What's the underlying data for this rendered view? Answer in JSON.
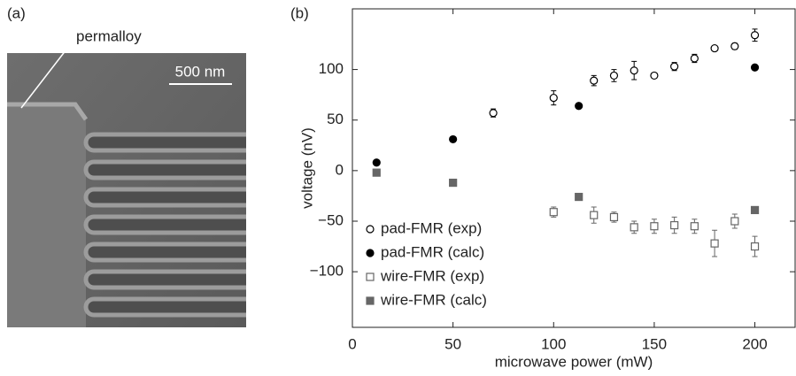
{
  "panel_a": {
    "label": "(a)",
    "annotation": "permalloy",
    "scale_bar": "500 nm"
  },
  "chart_data": {
    "type": "scatter",
    "panel_label": "(b)",
    "x_label": "microwave power (mW)",
    "y_label": "voltage (nV)",
    "xlim": [
      0,
      220
    ],
    "ylim": [
      -155,
      160
    ],
    "xticks": [
      0,
      50,
      100,
      150,
      200
    ],
    "yticks": [
      {
        "value": -100,
        "label": "−100"
      },
      {
        "value": -50,
        "label": "−50"
      },
      0,
      50,
      100
    ],
    "legend": "lower left",
    "series": [
      {
        "name": "pad-FMR (exp)",
        "color": "#000000",
        "marker": "circle",
        "filled": false,
        "x": [
          70,
          100,
          120,
          130,
          140,
          150,
          160,
          170,
          180,
          190,
          200
        ],
        "values": [
          57,
          72,
          89,
          94,
          99,
          94,
          103,
          111,
          121,
          123,
          134
        ],
        "errors": [
          4,
          7,
          5,
          6,
          9,
          2,
          4,
          4,
          2,
          3,
          6
        ]
      },
      {
        "name": "pad-FMR (calc)",
        "color": "#000000",
        "marker": "circle",
        "filled": true,
        "x": [
          12,
          50,
          112.5,
          200
        ],
        "values": [
          8,
          31,
          64,
          102
        ]
      },
      {
        "name": "wire-FMR (exp)",
        "color": "#666666",
        "marker": "square",
        "filled": false,
        "x": [
          100,
          120,
          130,
          140,
          150,
          160,
          170,
          180,
          190,
          200
        ],
        "values": [
          -41,
          -44,
          -46,
          -56,
          -55,
          -54,
          -55,
          -72,
          -50,
          -75
        ],
        "errors": [
          5,
          8,
          5,
          6,
          7,
          8,
          7,
          13,
          7,
          10
        ]
      },
      {
        "name": "wire-FMR (calc)",
        "color": "#666666",
        "marker": "square",
        "filled": true,
        "x": [
          12,
          50,
          112.5,
          200
        ],
        "values": [
          -2,
          -12,
          -26,
          -39
        ]
      }
    ]
  }
}
